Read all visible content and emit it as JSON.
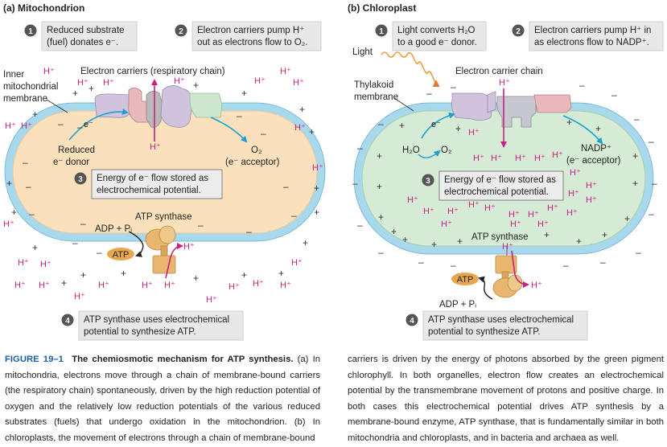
{
  "panel_a": {
    "title": "(a) Mitochondrion",
    "steps": [
      {
        "num": "1",
        "text": [
          "Reduced substrate",
          "(fuel) donates e⁻."
        ]
      },
      {
        "num": "2",
        "text": [
          "Electron carriers pump H⁺",
          "out as electrons flow to O₂."
        ]
      },
      {
        "num": "3",
        "text": [
          "Energy of e⁻ flow stored as",
          "electrochemical potential."
        ]
      },
      {
        "num": "4",
        "text": [
          "ATP synthase uses electrochemical",
          "potential to synthesize ATP."
        ]
      }
    ],
    "labels": {
      "membrane": [
        "Inner",
        "mitochondrial",
        "membrane"
      ],
      "carriers": "Electron carriers (respiratory chain)",
      "electron": "e⁻",
      "donor": [
        "Reduced",
        "e⁻ donor"
      ],
      "acceptor": [
        "O₂",
        "(e⁻ acceptor)"
      ],
      "synthase": "ATP synthase",
      "adp": "ADP + Pᵢ",
      "atp": "ATP",
      "hplus": "H⁺"
    }
  },
  "panel_b": {
    "title": "(b) Chloroplast",
    "steps": [
      {
        "num": "1",
        "text": [
          "Light converts H₂O",
          "to a good e⁻ donor."
        ]
      },
      {
        "num": "2",
        "text": [
          "Electron carriers pump H⁺ in",
          "as electrons flow to NADP⁺."
        ]
      },
      {
        "num": "3",
        "text": [
          "Energy of e⁻ flow stored as",
          "electrochemical potential."
        ]
      },
      {
        "num": "4",
        "text": [
          "ATP synthase uses electrochemical",
          "potential to synthesize ATP."
        ]
      }
    ],
    "labels": {
      "light": "Light",
      "membrane": [
        "Thylakoid",
        "membrane"
      ],
      "carriers": "Electron carrier chain",
      "electron": "e⁻",
      "h2o": "H₂O",
      "o2": "O₂",
      "acceptor": [
        "NADP⁺",
        "(e⁻ acceptor)"
      ],
      "synthase": "ATP synthase",
      "adp": "ADP + Pᵢ",
      "atp": "ATP",
      "hplus": "H⁺"
    }
  },
  "caption": {
    "figure_label": "FIGURE 19–1",
    "title": "The chemiosmotic mechanism for ATP synthesis.",
    "left_text": "(a) In mitochondria, electrons move through a chain of membrane-bound carriers (the respiratory chain) spontaneously, driven by the high reduction potential of oxygen and the relatively low reduction potentials of the various reduced substrates (fuels) that undergo oxidation in the mitochondrion. (b) In chloroplasts, the movement of electrons through a chain of membrane-bound",
    "right_text": "carriers is driven by the energy of photons absorbed by the green pigment chlorophyll. In both organelles, electron flow creates an electrochemical potential by the transmembrane movement of protons and positive charge. In both cases this electrochemical potential drives ATP synthesis by a membrane-bound enzyme, ATP synthase, that is fundamentally similar in both mitochondria and chloroplasts, and in bacteria and archaea as well."
  },
  "colors": {
    "membrane": "#a8d8ec",
    "matrix": "#fbe0bc",
    "stroma": "#d5ebd6",
    "carrier": "#cfc3dd",
    "proton": "#c9217f",
    "arrow": "#1e9fd0",
    "synthase": "#e8b66e",
    "stepbox": "#e8e8e8"
  }
}
